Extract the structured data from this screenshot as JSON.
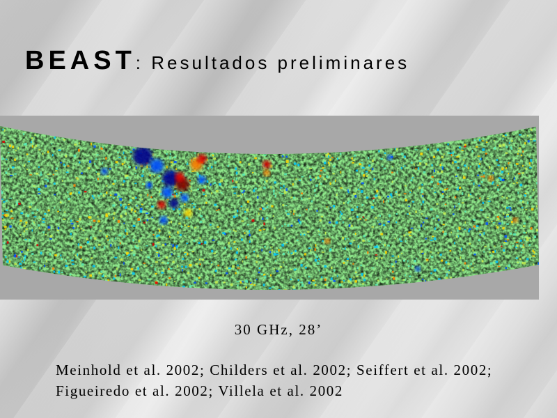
{
  "slide": {
    "title_strong": "BEAST",
    "title_rest": ": Resultados preliminares",
    "caption": "30 GHz,  28’",
    "references": [
      "Meinhold et al. 2002; Childers et al. 2002; Seiffert et al. 2002;",
      "Figueiredo et al. 2002; Villela et al. 2002"
    ]
  },
  "map": {
    "palette": [
      "#00008f",
      "#0050ff",
      "#00c8ff",
      "#5cf0b8",
      "#c8f050",
      "#ffd800",
      "#ff8000",
      "#e00000",
      "#7f0000"
    ],
    "background_color": "#a8a8a8"
  }
}
